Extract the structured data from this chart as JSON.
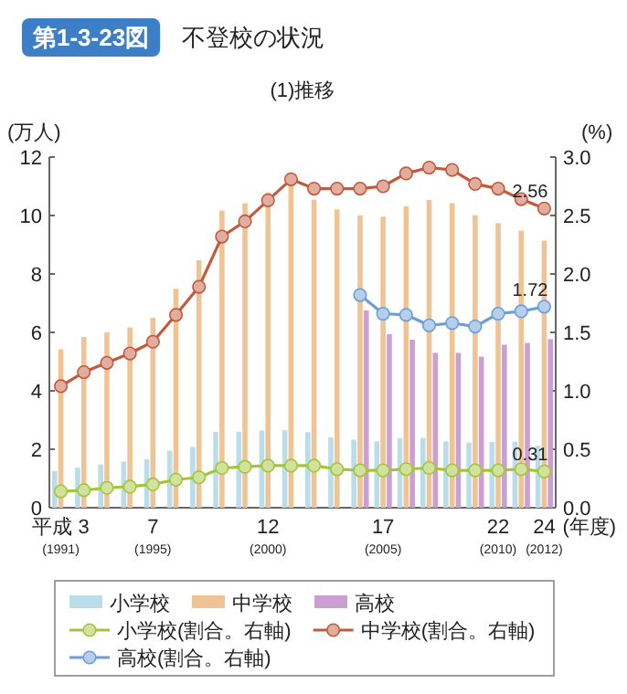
{
  "chart_data": {
    "type": "bar",
    "title": "不登校の状況",
    "subtitle": "(1)推移",
    "annotations": [
      "第1-3-23図"
    ],
    "ylabel": "(万人)",
    "y2label": "(%)",
    "xlabel": "(年度)",
    "categories": [
      "平成 3\n(1991)",
      null,
      null,
      null,
      "7\n(1995)",
      null,
      null,
      null,
      null,
      "12\n(2000)",
      null,
      null,
      null,
      null,
      "17\n(2005)",
      null,
      null,
      null,
      null,
      "22\n(2010)",
      null,
      "24\n(2012)"
    ],
    "ylim": [
      0,
      12
    ],
    "yticks": [
      0,
      2,
      4,
      6,
      8,
      10,
      12
    ],
    "y2lim": [
      0,
      3
    ],
    "y2ticks": [
      {
        "value": 0,
        "label": "0.0"
      },
      {
        "value": 0.5,
        "label": "0.5"
      },
      {
        "value": 1,
        "label": "1.0"
      },
      {
        "value": 1.5,
        "label": "1.5"
      },
      {
        "value": 2,
        "label": "2.0"
      },
      {
        "value": 2.5,
        "label": "2.5"
      },
      {
        "value": 3,
        "label": "3.0"
      }
    ],
    "legend": "bottom",
    "marker": "circle",
    "line_style": "solid",
    "series": [
      {
        "name": "小学校",
        "color": "#b9dde9",
        "values": [
          1.26,
          1.37,
          1.48,
          1.58,
          1.66,
          1.95,
          2.08,
          2.6,
          2.6,
          2.64,
          2.65,
          2.59,
          2.41,
          2.33,
          2.27,
          2.38,
          2.39,
          2.27,
          2.23,
          2.25,
          2.26,
          2.12
        ]
      },
      {
        "name": "中学校",
        "color": "#efc394",
        "values": [
          5.42,
          5.84,
          6.0,
          6.17,
          6.5,
          7.49,
          8.47,
          10.17,
          10.42,
          10.79,
          11.22,
          10.54,
          10.21,
          10.0,
          9.96,
          10.31,
          10.53,
          10.42,
          10.01,
          9.74,
          9.48,
          9.14
        ]
      },
      {
        "name": "高校",
        "color": "#cc9fd3",
        "values": [
          null,
          null,
          null,
          null,
          null,
          null,
          null,
          null,
          null,
          null,
          null,
          null,
          null,
          6.75,
          5.94,
          5.75,
          5.3,
          5.3,
          5.17,
          5.58,
          5.64,
          5.77
        ]
      },
      {
        "name": "小学校(割合。右軸)",
        "type": "line",
        "axis": "y2",
        "color": "#a4c53a",
        "values": [
          0.14,
          0.15,
          0.17,
          0.18,
          0.2,
          0.24,
          0.26,
          0.34,
          0.35,
          0.36,
          0.36,
          0.36,
          0.33,
          0.32,
          0.32,
          0.33,
          0.34,
          0.32,
          0.32,
          0.32,
          0.33,
          0.31
        ],
        "value_labels": [
          null,
          null,
          null,
          null,
          null,
          null,
          null,
          null,
          null,
          null,
          null,
          null,
          null,
          null,
          null,
          null,
          null,
          null,
          null,
          null,
          null,
          "0.31"
        ]
      },
      {
        "name": "中学校(割合。右軸)",
        "type": "line",
        "axis": "y2",
        "color": "#c25a3c",
        "values": [
          1.04,
          1.16,
          1.24,
          1.32,
          1.42,
          1.65,
          1.89,
          2.32,
          2.45,
          2.63,
          2.81,
          2.73,
          2.73,
          2.73,
          2.75,
          2.86,
          2.91,
          2.89,
          2.77,
          2.73,
          2.64,
          2.56
        ],
        "value_labels": [
          null,
          null,
          null,
          null,
          null,
          null,
          null,
          null,
          null,
          null,
          null,
          null,
          null,
          null,
          null,
          null,
          null,
          null,
          null,
          null,
          null,
          "2.56"
        ]
      },
      {
        "name": "高校(割合。右軸)",
        "type": "line",
        "axis": "y2",
        "color": "#6b9fd6",
        "values": [
          null,
          null,
          null,
          null,
          null,
          null,
          null,
          null,
          null,
          null,
          null,
          null,
          null,
          1.82,
          1.66,
          1.65,
          1.56,
          1.58,
          1.55,
          1.66,
          1.68,
          1.72
        ],
        "value_labels": [
          null,
          null,
          null,
          null,
          null,
          null,
          null,
          null,
          null,
          null,
          null,
          null,
          null,
          null,
          null,
          null,
          null,
          null,
          null,
          null,
          null,
          "1.72"
        ]
      }
    ]
  }
}
